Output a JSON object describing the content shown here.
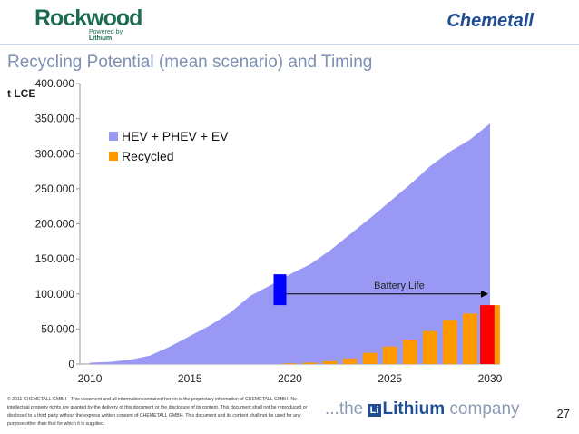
{
  "header": {
    "left_logo": "Rockwood",
    "left_logo_sub_prefix": "Powered by",
    "left_logo_sub_brand": "Lithium",
    "right_logo": "Chemetall"
  },
  "slide": {
    "title": "Recycling Potential (mean scenario) and Timing",
    "unit_label": "t LCE",
    "page_number": "27",
    "footer": "© 2011 CHEMETALL GMBH - This document and all information contained herein is the proprietary information of CHEMETALL GMBH. No intellectual property rights are granted by the delivery of this document or the disclosure of its content. This document shall not be reproduced or disclosed to a third party without the express written consent of CHEMETALL GMBH. This document and its content shall not be used for any purpose other than that for which it is supplied.",
    "tagline_prefix": "...the",
    "tagline_box": "Li",
    "tagline_brand": "Lithium",
    "tagline_suffix": "company"
  },
  "chart_data": {
    "type": "area",
    "title": "",
    "xlabel": "",
    "ylabel": "t LCE",
    "xlim": [
      2010,
      2030
    ],
    "ylim": [
      0,
      400000
    ],
    "grid": false,
    "legend_position": "upper-left",
    "y_ticks": [
      "0",
      "50.000",
      "100.000",
      "150.000",
      "200.000",
      "250.000",
      "300.000",
      "350.000",
      "400.000"
    ],
    "x_ticks": [
      "2010",
      "2015",
      "2020",
      "2025",
      "2030"
    ],
    "x_tick_values": [
      2010,
      2015,
      2020,
      2025,
      2030
    ],
    "colors": {
      "demand": "#9999f5",
      "recycled": "#ff9900",
      "highlight_red": "#ff0000",
      "marker_blue": "#0000ff"
    },
    "series": [
      {
        "name": "HEV + PHEV + EV",
        "type": "area",
        "x": [
          2010,
          2011,
          2012,
          2013,
          2014,
          2015,
          2016,
          2017,
          2018,
          2019,
          2020,
          2021,
          2022,
          2023,
          2024,
          2025,
          2026,
          2027,
          2028,
          2029,
          2030
        ],
        "values": [
          2000,
          3000,
          6000,
          12000,
          25000,
          40000,
          55000,
          73000,
          97000,
          112000,
          128000,
          142000,
          162000,
          185000,
          208000,
          232000,
          256000,
          282000,
          303000,
          320000,
          343000
        ]
      },
      {
        "name": "Recycled",
        "type": "bar",
        "x": [
          2020,
          2021,
          2022,
          2023,
          2024,
          2025,
          2026,
          2027,
          2028,
          2029,
          2030
        ],
        "values": [
          1000,
          2000,
          4000,
          8000,
          16000,
          25000,
          35000,
          47000,
          63000,
          72000,
          84000
        ]
      }
    ],
    "annotations": {
      "battery_life_label": "Battery Life",
      "marker_year": 2019.5,
      "marker_range": [
        84000,
        128000
      ],
      "arrow_from": 2019.5,
      "arrow_to": 2030,
      "arrow_value": 100000,
      "highlight_year": 2030
    }
  }
}
